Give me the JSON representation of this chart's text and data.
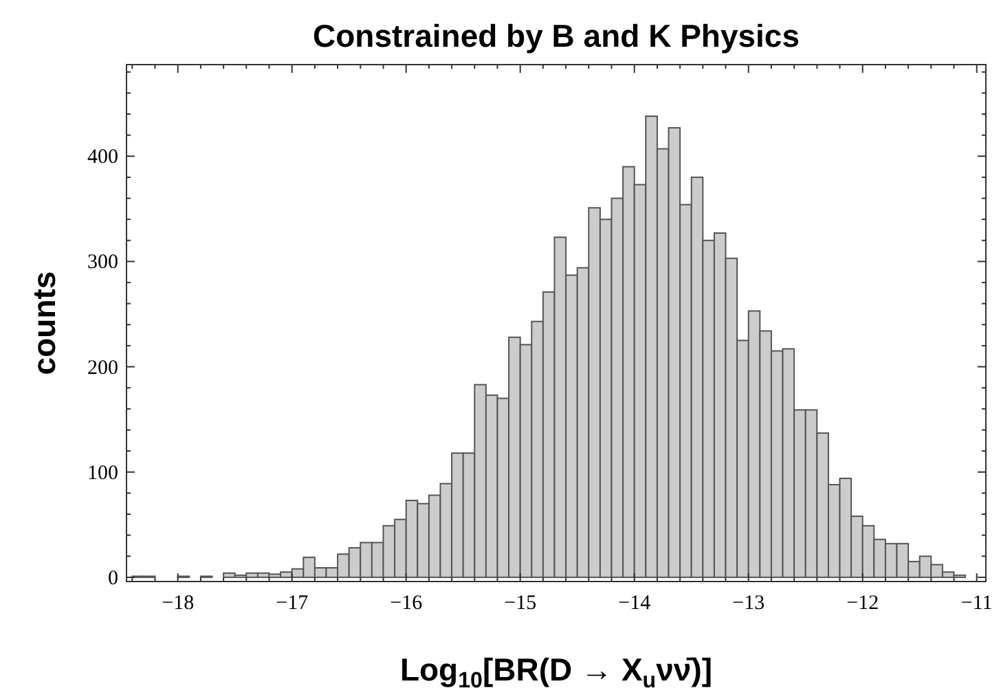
{
  "chart_data": {
    "type": "histogram",
    "title": "Constrained by B and K Physics",
    "xlabel": "Log$_{10}$[BR(D → X$_{u}$νν̄)]",
    "ylabel": "counts",
    "bins": [
      -18.4,
      -18.3,
      -18.2,
      -18.1,
      -18.0,
      -17.9,
      -17.8,
      -17.7,
      -17.6,
      -17.5,
      -17.4,
      -17.3,
      -17.2,
      -17.1,
      -17.0,
      -16.9,
      -16.8,
      -16.7,
      -16.6,
      -16.5,
      -16.4,
      -16.3,
      -16.2,
      -16.1,
      -16.0,
      -15.9,
      -15.8,
      -15.7,
      -15.6,
      -15.5,
      -15.4,
      -15.3,
      -15.2,
      -15.1,
      -15.0,
      -14.9,
      -14.8,
      -14.7,
      -14.6,
      -14.5,
      -14.4,
      -14.3,
      -14.2,
      -14.1,
      -14.0,
      -13.9,
      -13.8,
      -13.7,
      -13.6,
      -13.5,
      -13.4,
      -13.3,
      -13.2,
      -13.1,
      -13.0,
      -12.9,
      -12.8,
      -12.7,
      -12.6,
      -12.5,
      -12.4,
      -12.3,
      -12.2,
      -12.1,
      -12.0,
      -11.9,
      -11.8,
      -11.7,
      -11.6,
      -11.5,
      -11.4,
      -11.3,
      -11.2,
      -11.1
    ],
    "values": [
      1,
      1,
      0,
      0,
      1,
      0,
      1,
      0,
      4,
      2,
      4,
      4,
      3,
      5,
      8,
      19,
      9,
      9,
      22,
      28,
      33,
      33,
      49,
      55,
      73,
      70,
      78,
      89,
      118,
      118,
      183,
      173,
      170,
      228,
      221,
      243,
      271,
      323,
      287,
      294,
      351,
      340,
      360,
      390,
      373,
      438,
      407,
      427,
      354,
      380,
      320,
      327,
      303,
      225,
      253,
      234,
      215,
      217,
      159,
      159,
      137,
      88,
      94,
      58,
      49,
      36,
      32,
      32,
      15,
      20,
      12,
      5,
      2
    ],
    "color": "#cccccc",
    "xlim": [
      -18.45,
      -10.92
    ],
    "ylim": [
      -4,
      487
    ],
    "xticks": [
      {
        "value": -18.4,
        "label": null
      },
      {
        "value": -18.2,
        "label": null
      },
      {
        "value": -18,
        "label": "−18"
      },
      {
        "value": -17.8,
        "label": null
      },
      {
        "value": -17.6,
        "label": null
      },
      {
        "value": -17.4,
        "label": null
      },
      {
        "value": -17.2,
        "label": null
      },
      {
        "value": -17,
        "label": "−17"
      },
      {
        "value": -16.8,
        "label": null
      },
      {
        "value": -16.6,
        "label": null
      },
      {
        "value": -16.4,
        "label": null
      },
      {
        "value": -16.2,
        "label": null
      },
      {
        "value": -16,
        "label": "−16"
      },
      {
        "value": -15.8,
        "label": null
      },
      {
        "value": -15.6,
        "label": null
      },
      {
        "value": -15.4,
        "label": null
      },
      {
        "value": -15.2,
        "label": null
      },
      {
        "value": -15,
        "label": "−15"
      },
      {
        "value": -14.8,
        "label": null
      },
      {
        "value": -14.6,
        "label": null
      },
      {
        "value": -14.4,
        "label": null
      },
      {
        "value": -14.2,
        "label": null
      },
      {
        "value": -14,
        "label": "−14"
      },
      {
        "value": -13.8,
        "label": null
      },
      {
        "value": -13.6,
        "label": null
      },
      {
        "value": -13.4,
        "label": null
      },
      {
        "value": -13.2,
        "label": null
      },
      {
        "value": -13,
        "label": "−13"
      },
      {
        "value": -12.8,
        "label": null
      },
      {
        "value": -12.6,
        "label": null
      },
      {
        "value": -12.4,
        "label": null
      },
      {
        "value": -12.2,
        "label": null
      },
      {
        "value": -12,
        "label": "−12"
      },
      {
        "value": -11.8,
        "label": null
      },
      {
        "value": -11.6,
        "label": null
      },
      {
        "value": -11.4,
        "label": null
      },
      {
        "value": -11.2,
        "label": null
      },
      {
        "value": -11,
        "label": "−11"
      }
    ],
    "yticks": [
      0,
      {
        "value": 20,
        "label": null
      },
      {
        "value": 40,
        "label": null
      },
      {
        "value": 60,
        "label": null
      },
      {
        "value": 80,
        "label": null
      },
      100,
      {
        "value": 120,
        "label": null
      },
      {
        "value": 140,
        "label": null
      },
      {
        "value": 160,
        "label": null
      },
      {
        "value": 180,
        "label": null
      },
      200,
      {
        "value": 220,
        "label": null
      },
      {
        "value": 240,
        "label": null
      },
      {
        "value": 260,
        "label": null
      },
      {
        "value": 280,
        "label": null
      },
      300,
      {
        "value": 320,
        "label": null
      },
      {
        "value": 340,
        "label": null
      },
      {
        "value": 360,
        "label": null
      },
      {
        "value": 380,
        "label": null
      },
      400,
      {
        "value": 420,
        "label": null
      },
      {
        "value": 440,
        "label": null
      },
      {
        "value": 460,
        "label": null
      },
      {
        "value": 480,
        "label": null
      }
    ],
    "grid": false
  }
}
